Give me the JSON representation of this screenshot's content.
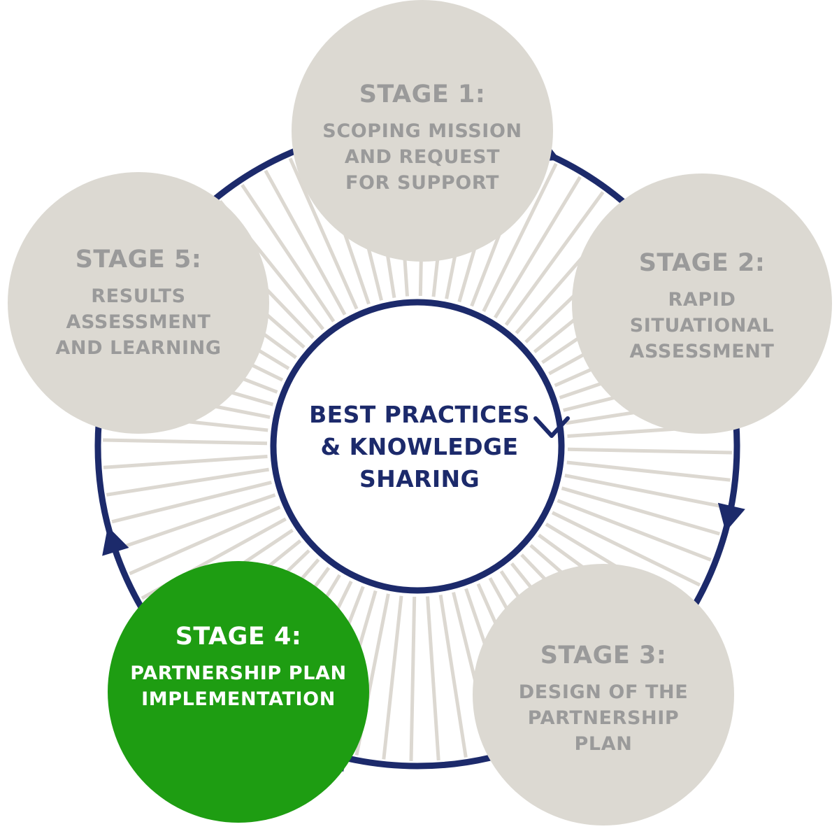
{
  "colors": {
    "ring": "#1c2a6b",
    "spoke": "#dcd8d1",
    "stage_fill": "#dcd9d2",
    "stage_text": "#9a9a9a",
    "active_fill": "#1e9d12",
    "active_text": "#ffffff",
    "center_text": "#1c2a6b"
  },
  "center": {
    "lines": [
      "BEST PRACTICES",
      "& KNOWLEDGE",
      "SHARING"
    ]
  },
  "stages": [
    {
      "id": "stage-1",
      "title": "STAGE 1:",
      "lines": [
        "SCOPING MISSION",
        "AND REQUEST",
        "FOR SUPPORT"
      ],
      "active": false
    },
    {
      "id": "stage-2",
      "title": "STAGE 2:",
      "lines": [
        "RAPID",
        "SITUATIONAL",
        "ASSESSMENT"
      ],
      "active": false
    },
    {
      "id": "stage-3",
      "title": "STAGE 3:",
      "lines": [
        "DESIGN OF THE",
        "PARTNERSHIP",
        "PLAN"
      ],
      "active": false
    },
    {
      "id": "stage-4",
      "title": "STAGE 4:",
      "lines": [
        "PARTNERSHIP PLAN",
        "IMPLEMENTATION"
      ],
      "active": true
    },
    {
      "id": "stage-5",
      "title": "STAGE 5:",
      "lines": [
        "RESULTS",
        "ASSESSMENT",
        "AND LEARNING"
      ],
      "active": false
    }
  ]
}
